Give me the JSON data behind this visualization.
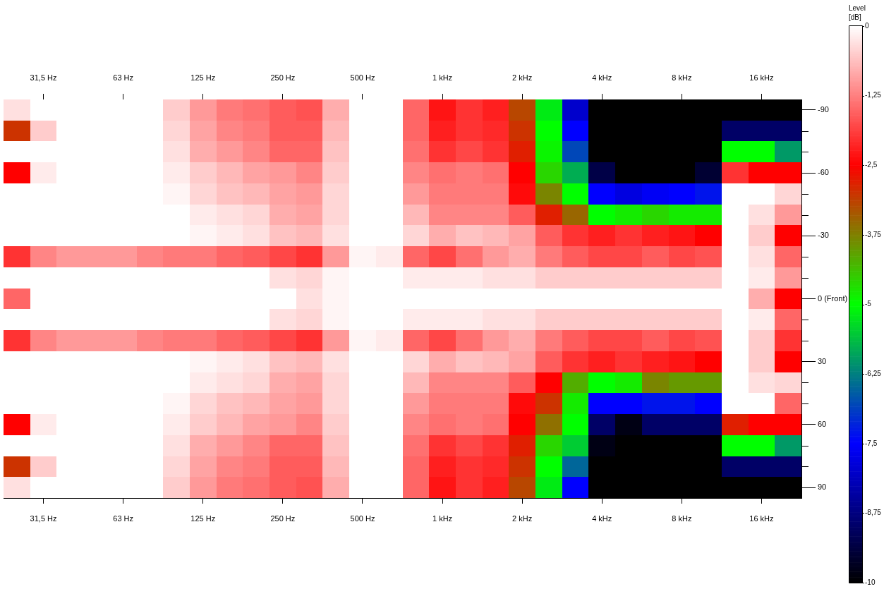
{
  "chart_data": {
    "type": "heatmap",
    "categories": [
      null,
      "31,5 Hz",
      null,
      null,
      "63 Hz",
      null,
      null,
      "125 Hz",
      null,
      null,
      "250 Hz",
      null,
      null,
      "500 Hz",
      null,
      null,
      "1 kHz",
      null,
      null,
      "2 kHz",
      null,
      null,
      "4 kHz",
      null,
      null,
      "8 kHz",
      null,
      null,
      "16 kHz",
      null
    ],
    "y_categories": [
      "-90",
      null,
      null,
      "-60",
      null,
      null,
      "-30",
      null,
      null,
      "0 (Front)",
      null,
      null,
      "30",
      null,
      null,
      "60",
      null,
      null,
      "90"
    ],
    "cells": [
      [
        -0.3,
        0,
        0,
        0,
        0,
        0,
        -0.5,
        -1,
        -1.3,
        -1.4,
        -1.6,
        -1.7,
        -0.8,
        0,
        0,
        -1.5,
        -2.3,
        -2,
        -2.2,
        -3.2,
        -5.2,
        -8,
        -10,
        -10,
        -10,
        -10,
        -10,
        -10,
        -10,
        -10
      ],
      [
        -3,
        -0.5,
        0,
        0,
        0,
        0,
        -0.4,
        -0.9,
        -1.2,
        -1.3,
        -1.6,
        -1.6,
        -0.7,
        0,
        0,
        -1.5,
        -2.2,
        -2,
        -2.1,
        -3,
        -5,
        -7.5,
        -10,
        -10,
        -10,
        -10,
        -10,
        -9,
        -9,
        -9
      ],
      [
        0,
        0,
        0,
        0,
        0,
        0,
        -0.3,
        -0.8,
        -1,
        -1.2,
        -1.5,
        -1.5,
        -0.6,
        0,
        0,
        -1.4,
        -2,
        -1.8,
        -2,
        -2.8,
        -4.9,
        -6.8,
        -10,
        -10,
        -10,
        -10,
        -10,
        -5,
        -5,
        -6
      ],
      [
        -2.5,
        -0.2,
        0,
        0,
        0,
        0,
        -0.2,
        -0.5,
        -0.7,
        -0.9,
        -1,
        -1.2,
        -0.5,
        0,
        0,
        -1.2,
        -1.4,
        -1.3,
        -1.4,
        -2.5,
        -4.6,
        -5.8,
        -9.3,
        -10,
        -10,
        -10,
        -9.5,
        -2,
        -2.5,
        -2.5
      ],
      [
        0,
        0,
        0,
        0,
        0,
        0,
        -0.1,
        -0.4,
        -0.6,
        -0.7,
        -0.9,
        -1,
        -0.4,
        0,
        0,
        -1,
        -1.3,
        -1.3,
        -1.3,
        -2.4,
        -3.8,
        -5,
        -7.5,
        -7.8,
        -7.6,
        -7.5,
        -7.3,
        0,
        0,
        -0.4
      ],
      [
        0,
        0,
        0,
        0,
        0,
        0,
        0,
        -0.2,
        -0.3,
        -0.4,
        -0.8,
        -0.9,
        -0.4,
        0,
        0,
        -0.7,
        -1.2,
        -1.2,
        -1.2,
        -1.6,
        -2.8,
        -3.5,
        -5,
        -4.8,
        -4.6,
        -4.8,
        -4.8,
        0,
        -0.3,
        -1
      ],
      [
        0,
        0,
        0,
        0,
        0,
        0,
        0,
        -0.1,
        -0.2,
        -0.3,
        -0.6,
        -0.7,
        -0.3,
        0,
        0,
        -0.4,
        -0.8,
        -0.6,
        -0.7,
        -0.9,
        -1.6,
        -2,
        -2.2,
        -2,
        -2.2,
        -2.3,
        -2.5,
        0,
        -0.5,
        -2.5
      ],
      [
        -2,
        -1.2,
        -1,
        -1,
        -1,
        -1.2,
        -1.3,
        -1.3,
        -1.5,
        -1.6,
        -1.8,
        -2,
        -1,
        -0.1,
        -0.2,
        -1.5,
        -1.8,
        -1.4,
        -1,
        -0.8,
        -1.3,
        -1.6,
        -1.8,
        -1.8,
        -1.6,
        -1.8,
        -1.7,
        0,
        -0.3,
        -1.5
      ],
      [
        0,
        0,
        0,
        0,
        0,
        0,
        0,
        0,
        0,
        0,
        -0.3,
        -0.4,
        -0.1,
        0,
        0,
        -0.2,
        -0.2,
        -0.2,
        -0.3,
        -0.3,
        -0.5,
        -0.5,
        -0.5,
        -0.5,
        -0.5,
        -0.5,
        -0.5,
        0,
        -0.2,
        -1
      ],
      [
        -1.5,
        0,
        0,
        0,
        0,
        0,
        0,
        0,
        0,
        0,
        0,
        -0.3,
        -0.1,
        0,
        0,
        0,
        0,
        0,
        0,
        0,
        0,
        0,
        0,
        0,
        0,
        0,
        0,
        0,
        -0.8,
        -2.5
      ],
      [
        0,
        0,
        0,
        0,
        0,
        0,
        0,
        0,
        0,
        0,
        -0.3,
        -0.4,
        -0.1,
        0,
        0,
        -0.2,
        -0.2,
        -0.2,
        -0.3,
        -0.3,
        -0.5,
        -0.5,
        -0.5,
        -0.5,
        -0.5,
        -0.5,
        -0.5,
        0,
        -0.2,
        -1.5
      ],
      [
        -2,
        -1.2,
        -1,
        -1,
        -1,
        -1.2,
        -1.3,
        -1.3,
        -1.5,
        -1.6,
        -1.8,
        -2,
        -1,
        -0.1,
        -0.2,
        -1.5,
        -1.8,
        -1.4,
        -1,
        -0.8,
        -1.3,
        -1.6,
        -1.8,
        -1.8,
        -1.6,
        -1.8,
        -1.7,
        0,
        -0.5,
        -2
      ],
      [
        0,
        0,
        0,
        0,
        0,
        0,
        0,
        -0.1,
        -0.2,
        -0.3,
        -0.6,
        -0.7,
        -0.3,
        0,
        0,
        -0.4,
        -0.8,
        -0.6,
        -0.7,
        -0.9,
        -1.6,
        -2,
        -2.2,
        -2,
        -2.2,
        -2.3,
        -2.5,
        0,
        -0.5,
        -2.5
      ],
      [
        0,
        0,
        0,
        0,
        0,
        0,
        0,
        -0.2,
        -0.3,
        -0.4,
        -0.8,
        -0.9,
        -0.4,
        0,
        0,
        -0.7,
        -1.2,
        -1.2,
        -1.2,
        -1.6,
        -2.5,
        -4.2,
        -5,
        -4.8,
        -3.8,
        -4,
        -4,
        0,
        -0.3,
        -0.4
      ],
      [
        0,
        0,
        0,
        0,
        0,
        0,
        -0.1,
        -0.4,
        -0.6,
        -0.7,
        -0.9,
        -1,
        -0.4,
        0,
        0,
        -1,
        -1.3,
        -1.3,
        -1.3,
        -2.4,
        -3,
        -4.8,
        -7.5,
        -7.5,
        -7.3,
        -7.3,
        -7.5,
        0,
        0,
        -1.5
      ],
      [
        -2.5,
        -0.2,
        0,
        0,
        0,
        0,
        -0.2,
        -0.5,
        -0.7,
        -0.9,
        -1,
        -1.2,
        -0.5,
        0,
        0,
        -1.2,
        -1.4,
        -1.3,
        -1.4,
        -2.5,
        -3.6,
        -5,
        -9,
        -9.8,
        -9,
        -9,
        -9,
        -2.8,
        -2.5,
        -2.5
      ],
      [
        0,
        0,
        0,
        0,
        0,
        0,
        -0.3,
        -0.8,
        -1,
        -1.2,
        -1.5,
        -1.5,
        -0.6,
        0,
        0,
        -1.4,
        -2,
        -1.8,
        -2,
        -2.8,
        -4.6,
        -5.5,
        -9.8,
        -10,
        -10,
        -10,
        -10,
        -5,
        -5,
        -6
      ],
      [
        -3,
        -0.5,
        0,
        0,
        0,
        0,
        -0.4,
        -0.9,
        -1.2,
        -1.3,
        -1.6,
        -1.6,
        -0.7,
        0,
        0,
        -1.5,
        -2.2,
        -2,
        -2.1,
        -3,
        -5,
        -6.5,
        -10,
        -10,
        -10,
        -10,
        -10,
        -9,
        -9,
        -9
      ],
      [
        -0.3,
        0,
        0,
        0,
        0,
        0,
        -0.5,
        -1,
        -1.3,
        -1.4,
        -1.6,
        -1.7,
        -0.8,
        0,
        0,
        -1.5,
        -2.3,
        -2,
        -2.2,
        -3.2,
        -5.2,
        -7.5,
        -10,
        -10,
        -10,
        -10,
        -10,
        -10,
        -10,
        -10
      ]
    ],
    "clim": [
      -10,
      0
    ],
    "cticks": [
      0,
      {
        "value": -1.25,
        "label": "-1,25"
      },
      {
        "value": -2.5,
        "label": "-2,5"
      },
      {
        "value": -3.75,
        "label": "-3,75"
      },
      -5,
      {
        "value": -6.25,
        "label": "-6,25"
      },
      {
        "value": -7.5,
        "label": "-7,5"
      },
      {
        "value": -8.75,
        "label": "-8,75"
      },
      -10
    ],
    "clabel": "Level [dB]"
  }
}
